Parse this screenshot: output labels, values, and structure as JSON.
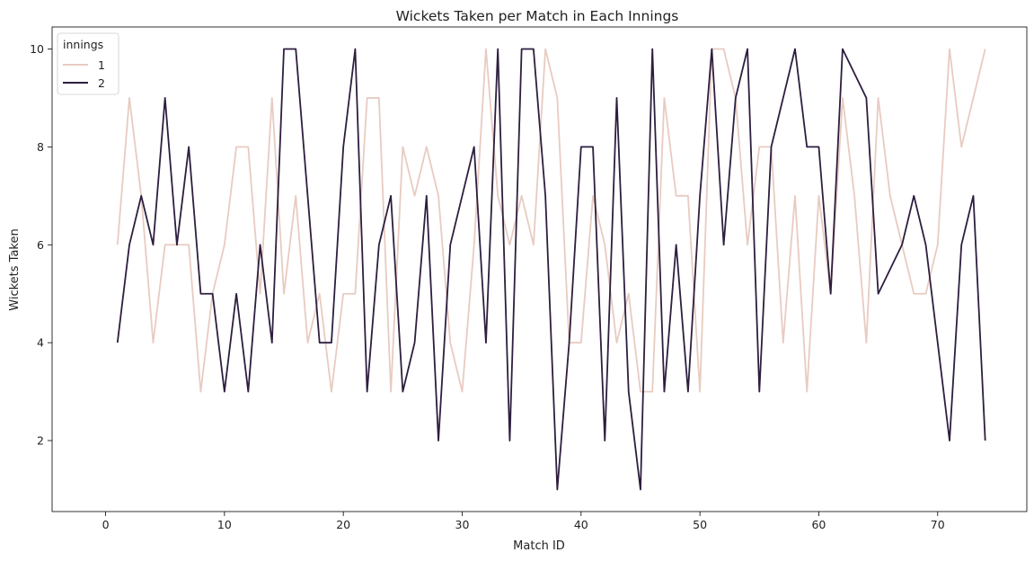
{
  "chart_data": {
    "type": "line",
    "title": "Wickets Taken per Match in Each Innings",
    "xlabel": "Match ID",
    "ylabel": "Wickets Taken",
    "xlim": [
      -4.5,
      77.5
    ],
    "ylim": [
      0.55,
      10.45
    ],
    "xticks": [
      0,
      10,
      20,
      30,
      40,
      50,
      60,
      70
    ],
    "yticks": [
      2,
      4,
      6,
      8,
      10
    ],
    "grid": false,
    "legend": {
      "title": "innings",
      "placement": "upper-left"
    },
    "series": [
      {
        "name": "1",
        "color": "#e8cbc1",
        "x": [
          1,
          2,
          3,
          4,
          5,
          6,
          7,
          8,
          9,
          10,
          11,
          12,
          13,
          14,
          15,
          16,
          17,
          18,
          19,
          20,
          21,
          22,
          23,
          24,
          25,
          26,
          27,
          28,
          29,
          30,
          31,
          32,
          33,
          34,
          35,
          36,
          37,
          38,
          39,
          40,
          41,
          42,
          43,
          44,
          45,
          46,
          47,
          48,
          49,
          50,
          51,
          52,
          53,
          54,
          55,
          56,
          57,
          58,
          59,
          60,
          61,
          62,
          63,
          64,
          65,
          66,
          67,
          68,
          69,
          70,
          71,
          72,
          73,
          74
        ],
        "y": [
          6,
          9,
          7,
          4,
          6,
          6,
          6,
          3,
          5,
          6,
          8,
          8,
          5,
          9,
          5,
          7,
          4,
          5,
          3,
          5,
          5,
          9,
          9,
          3,
          8,
          7,
          8,
          7,
          4,
          3,
          6,
          10,
          7,
          6,
          7,
          6,
          10,
          9,
          4,
          4,
          7,
          6,
          4,
          5,
          3,
          3,
          9,
          7,
          7,
          3,
          10,
          10,
          9,
          6,
          8,
          8,
          4,
          7,
          3,
          7,
          5,
          9,
          7,
          4,
          9,
          7,
          6,
          5,
          5,
          6,
          10,
          8,
          9,
          10
        ]
      },
      {
        "name": "2",
        "color": "#2d1e3e",
        "x": [
          1,
          2,
          3,
          4,
          5,
          6,
          7,
          8,
          9,
          10,
          11,
          12,
          13,
          14,
          15,
          16,
          17,
          18,
          19,
          20,
          21,
          22,
          23,
          24,
          25,
          26,
          27,
          28,
          29,
          30,
          31,
          32,
          33,
          34,
          35,
          36,
          37,
          38,
          39,
          40,
          41,
          42,
          43,
          44,
          45,
          46,
          47,
          48,
          49,
          50,
          51,
          52,
          53,
          54,
          55,
          56,
          57,
          58,
          59,
          60,
          61,
          62,
          63,
          64,
          65,
          66,
          67,
          68,
          69,
          70,
          71,
          72,
          73,
          74
        ],
        "y": [
          4,
          6,
          7,
          6,
          9,
          6,
          8,
          5,
          5,
          3,
          5,
          3,
          6,
          4,
          10,
          10,
          7,
          4,
          4,
          8,
          10,
          3,
          6,
          7,
          3,
          4,
          7,
          2,
          6,
          7,
          8,
          4,
          10,
          2,
          10,
          10,
          7,
          1,
          4,
          8,
          8,
          2,
          9,
          3,
          1,
          10,
          3,
          6,
          3,
          7,
          10,
          6,
          9,
          10,
          3,
          8,
          9,
          10,
          8,
          8,
          5,
          10,
          9.5,
          9,
          5,
          5.5,
          6,
          7,
          6,
          4,
          2,
          6,
          7,
          2
        ]
      }
    ]
  }
}
